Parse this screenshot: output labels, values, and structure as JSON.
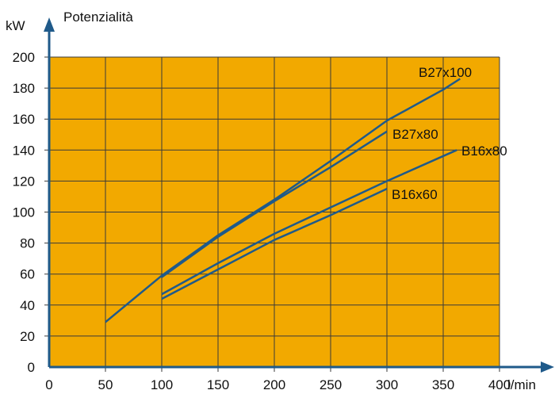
{
  "colors": {
    "plot_background": "#f2a900",
    "line": "#1f5a8a",
    "grid": "#3a3a3a",
    "axis": "#1f5a8a",
    "text": "#111111"
  },
  "chart_data": {
    "type": "line",
    "title": "",
    "ylabel": "Potenzialità",
    "yunit": "kW",
    "xunit": "l/min",
    "xlim": [
      0,
      400
    ],
    "ylim": [
      0,
      200
    ],
    "xticks": [
      0,
      50,
      100,
      150,
      200,
      250,
      300,
      350,
      400
    ],
    "yticks": [
      0,
      20,
      40,
      60,
      80,
      100,
      120,
      140,
      160,
      180,
      200
    ],
    "grid": true,
    "series": [
      {
        "name": "B27x100",
        "x": [
          50,
          100,
          150,
          200,
          250,
          300,
          350,
          365
        ],
        "y": [
          29,
          59,
          85,
          108,
          133,
          159,
          179,
          186
        ]
      },
      {
        "name": "B27x80",
        "x": [
          100,
          150,
          200,
          250,
          300
        ],
        "y": [
          58,
          84,
          107,
          129,
          152
        ]
      },
      {
        "name": "B16x80",
        "x": [
          100,
          150,
          200,
          250,
          300,
          362
        ],
        "y": [
          47,
          67,
          86,
          103,
          120,
          140
        ]
      },
      {
        "name": "B16x60",
        "x": [
          100,
          150,
          200,
          250,
          300
        ],
        "y": [
          44,
          63,
          82,
          98,
          115
        ]
      }
    ]
  }
}
